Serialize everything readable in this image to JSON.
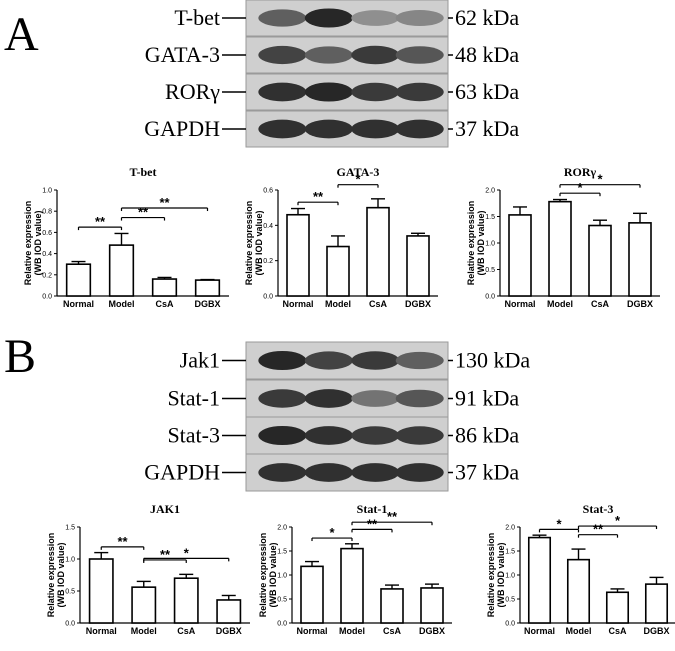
{
  "panels": [
    {
      "letter": "A",
      "blots": [
        {
          "protein": "T-bet",
          "size": "62 kDa",
          "intensity": [
            0.55,
            0.85,
            0.3,
            0.35
          ]
        },
        {
          "protein": "GATA-3",
          "size": "48 kDa",
          "intensity": [
            0.7,
            0.55,
            0.75,
            0.6
          ]
        },
        {
          "protein": "RORγ",
          "size": "63 kDa",
          "intensity": [
            0.8,
            0.85,
            0.75,
            0.75
          ]
        },
        {
          "protein": "GAPDH",
          "size": "37 kDa",
          "intensity": [
            0.8,
            0.8,
            0.8,
            0.8
          ]
        }
      ]
    },
    {
      "letter": "B",
      "blots": [
        {
          "protein": "Jak1",
          "size": "130 kDa",
          "intensity": [
            0.85,
            0.7,
            0.75,
            0.55
          ]
        },
        {
          "protein": "Stat-1",
          "size": "91 kDa",
          "intensity": [
            0.75,
            0.8,
            0.45,
            0.6
          ]
        },
        {
          "protein": "Stat-3",
          "size": "86 kDa",
          "intensity": [
            0.85,
            0.8,
            0.75,
            0.75
          ]
        },
        {
          "protein": "GAPDH",
          "size": "37 kDa",
          "intensity": [
            0.8,
            0.8,
            0.8,
            0.8
          ]
        }
      ]
    }
  ],
  "chart_data": [
    {
      "type": "bar",
      "title": "T-bet",
      "ylabel": "Relative expression (WB IOD value)",
      "categories": [
        "Normal",
        "Model",
        "CsA",
        "DGBX"
      ],
      "values": [
        0.3,
        0.48,
        0.16,
        0.15
      ],
      "errors": [
        0.025,
        0.11,
        0.015,
        0.005
      ],
      "ylim": [
        0,
        1.0
      ],
      "yticks": [
        "0.0",
        "0.2",
        "0.4",
        "0.6",
        "0.8",
        "1.0"
      ],
      "significance": [
        {
          "from": 0,
          "to": 1,
          "label": "**"
        },
        {
          "from": 1,
          "to": 2,
          "label": "**"
        },
        {
          "from": 1,
          "to": 3,
          "label": "**"
        }
      ]
    },
    {
      "type": "bar",
      "title": "GATA-3",
      "ylabel": "Relative expression (WB IOD value)",
      "categories": [
        "Normal",
        "Model",
        "CsA",
        "DGBX"
      ],
      "values": [
        0.46,
        0.28,
        0.5,
        0.34
      ],
      "errors": [
        0.035,
        0.06,
        0.05,
        0.015
      ],
      "ylim": [
        0,
        0.6
      ],
      "yticks": [
        "0.0",
        "0.2",
        "0.4",
        "0.6"
      ],
      "significance": [
        {
          "from": 0,
          "to": 1,
          "label": "**"
        },
        {
          "from": 1,
          "to": 2,
          "label": "*"
        }
      ]
    },
    {
      "type": "bar",
      "title": "RORγ",
      "ylabel": "Relative expression (WB IOD value)",
      "categories": [
        "Normal",
        "Model",
        "CsA",
        "DGBX"
      ],
      "values": [
        1.53,
        1.78,
        1.33,
        1.38
      ],
      "errors": [
        0.15,
        0.04,
        0.1,
        0.18
      ],
      "ylim": [
        0,
        2.0
      ],
      "yticks": [
        "0.0",
        "0.5",
        "1.0",
        "1.5",
        "2.0"
      ],
      "significance": [
        {
          "from": 1,
          "to": 2,
          "label": "*"
        },
        {
          "from": 1,
          "to": 3,
          "label": "*"
        }
      ]
    },
    {
      "type": "bar",
      "title": "JAK1",
      "ylabel": "Relative expression (WB IOD value)",
      "categories": [
        "Normal",
        "Model",
        "CsA",
        "DGBX"
      ],
      "values": [
        1.0,
        0.56,
        0.7,
        0.36
      ],
      "errors": [
        0.1,
        0.09,
        0.06,
        0.07
      ],
      "ylim": [
        0,
        1.5
      ],
      "yticks": [
        "0.0",
        "0.5",
        "1.0",
        "1.5"
      ],
      "significance": [
        {
          "from": 0,
          "to": 1,
          "label": "**"
        },
        {
          "from": 1,
          "to": 2,
          "label": "**"
        },
        {
          "from": 1,
          "to": 3,
          "label": "*"
        }
      ]
    },
    {
      "type": "bar",
      "title": "Stat-1",
      "ylabel": "Relative expression (WB IOD value)",
      "categories": [
        "Normal",
        "Model",
        "CsA",
        "DGBX"
      ],
      "values": [
        1.18,
        1.55,
        0.71,
        0.73
      ],
      "errors": [
        0.1,
        0.1,
        0.08,
        0.08
      ],
      "ylim": [
        0,
        2.0
      ],
      "yticks": [
        "0.0",
        "0.5",
        "1.0",
        "1.5",
        "2.0"
      ],
      "significance": [
        {
          "from": 0,
          "to": 1,
          "label": "*"
        },
        {
          "from": 1,
          "to": 2,
          "label": "**"
        },
        {
          "from": 1,
          "to": 3,
          "label": "**"
        }
      ]
    },
    {
      "type": "bar",
      "title": "Stat-3",
      "ylabel": "Relative expression (WB IOD value)",
      "categories": [
        "Normal",
        "Model",
        "CsA",
        "DGBX"
      ],
      "values": [
        1.78,
        1.32,
        0.64,
        0.81
      ],
      "errors": [
        0.05,
        0.22,
        0.07,
        0.14
      ],
      "ylim": [
        0,
        2.0
      ],
      "yticks": [
        "0.0",
        "0.5",
        "1.0",
        "1.5",
        "2.0"
      ],
      "significance": [
        {
          "from": 0,
          "to": 1,
          "label": "*"
        },
        {
          "from": 1,
          "to": 2,
          "label": "**"
        },
        {
          "from": 1,
          "to": 3,
          "label": "*"
        }
      ]
    }
  ]
}
